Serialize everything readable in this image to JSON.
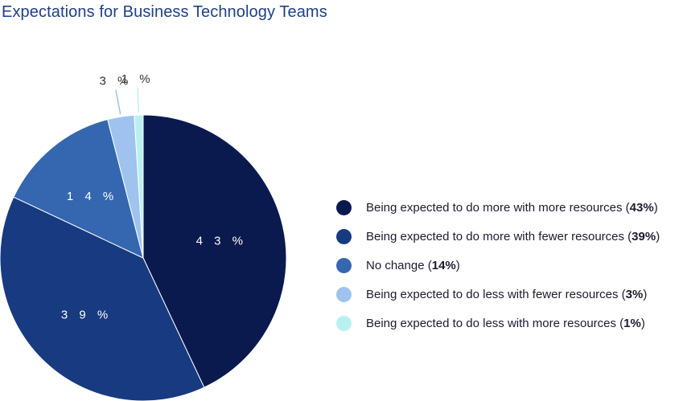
{
  "chart_data": {
    "type": "pie",
    "title": "Expectations for Business Technology Teams",
    "slices": [
      {
        "label": "Being expected to do more with more resources",
        "value": 43,
        "display": "4 3 %",
        "legend_pct": "43%",
        "color": "#0a1a4f"
      },
      {
        "label": "Being expected to do more with fewer resources",
        "value": 39,
        "display": "3 9 %",
        "legend_pct": "39%",
        "color": "#173a80"
      },
      {
        "label": "No change",
        "value": 14,
        "display": "1 4 %",
        "legend_pct": "14%",
        "color": "#3567b0"
      },
      {
        "label": "Being expected to do less with fewer resources",
        "value": 3,
        "display": "3 %",
        "legend_pct": "3%",
        "color": "#9fc3ee"
      },
      {
        "label": "Being expected to do less with more resources",
        "value": 1,
        "display": "1 %",
        "legend_pct": "1%",
        "color": "#b9f1f0"
      }
    ],
    "legend_placement": "right"
  }
}
